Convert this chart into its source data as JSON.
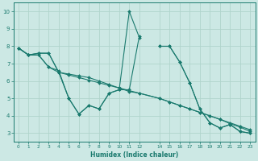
{
  "xlabel": "Humidex (Indice chaleur)",
  "bg_color": "#cce8e4",
  "line_color": "#1a7a6e",
  "grid_color": "#b0d4cc",
  "xlim": [
    -0.5,
    23.5
  ],
  "ylim": [
    2.5,
    10.5
  ],
  "xticks": [
    0,
    1,
    2,
    3,
    4,
    5,
    6,
    7,
    8,
    9,
    10,
    11,
    12,
    14,
    15,
    16,
    17,
    18,
    19,
    20,
    21,
    22,
    23
  ],
  "yticks": [
    3,
    4,
    5,
    6,
    7,
    8,
    9,
    10
  ],
  "series": [
    {
      "x": [
        0,
        1,
        2,
        3,
        4,
        5,
        6,
        7,
        8,
        9,
        10,
        11,
        12
      ],
      "y": [
        7.9,
        7.5,
        7.5,
        6.8,
        6.6,
        5.0,
        4.1,
        4.6,
        4.4,
        5.3,
        5.5,
        5.5,
        8.6
      ]
    },
    {
      "x": [
        14,
        15,
        16,
        17,
        18,
        19,
        20,
        21,
        22,
        23
      ],
      "y": [
        8.0,
        8.0,
        7.1,
        5.9,
        4.4,
        3.6,
        3.3,
        3.5,
        3.1,
        3.0
      ]
    },
    {
      "x": [
        0,
        1,
        2,
        3,
        4,
        5,
        6,
        7,
        8,
        9,
        10,
        11,
        12
      ],
      "y": [
        7.9,
        7.5,
        7.5,
        6.8,
        6.5,
        5.0,
        4.1,
        4.6,
        4.4,
        5.3,
        5.5,
        10.0,
        8.5
      ]
    },
    {
      "x": [
        14,
        15,
        16,
        17,
        18,
        19,
        20,
        21,
        22,
        23
      ],
      "y": [
        8.0,
        8.0,
        7.1,
        5.9,
        4.4,
        3.6,
        3.3,
        3.5,
        3.1,
        3.0
      ]
    },
    {
      "x": [
        0,
        1,
        2,
        3,
        4,
        5,
        6,
        7,
        8,
        9,
        10,
        11,
        12,
        14,
        15,
        16,
        17,
        18,
        19,
        20,
        21,
        22,
        23
      ],
      "y": [
        7.9,
        7.5,
        7.6,
        7.6,
        6.5,
        6.4,
        6.3,
        6.2,
        6.0,
        5.8,
        5.6,
        5.4,
        5.3,
        5.0,
        4.8,
        4.6,
        4.4,
        4.2,
        4.0,
        3.8,
        3.6,
        3.4,
        3.2
      ]
    },
    {
      "x": [
        0,
        1,
        2,
        3,
        4,
        5,
        6,
        7,
        8,
        9,
        10,
        11,
        12,
        14,
        15,
        16,
        17,
        18,
        19,
        20,
        21,
        22,
        23
      ],
      "y": [
        7.9,
        7.5,
        7.6,
        7.6,
        6.5,
        6.35,
        6.2,
        6.05,
        5.9,
        5.75,
        5.6,
        5.45,
        5.3,
        5.0,
        4.8,
        4.6,
        4.4,
        4.2,
        4.0,
        3.8,
        3.55,
        3.35,
        3.1
      ]
    }
  ],
  "xlabel_fontsize": 5.5,
  "tick_fontsize_x": 4.2,
  "tick_fontsize_y": 5.0
}
